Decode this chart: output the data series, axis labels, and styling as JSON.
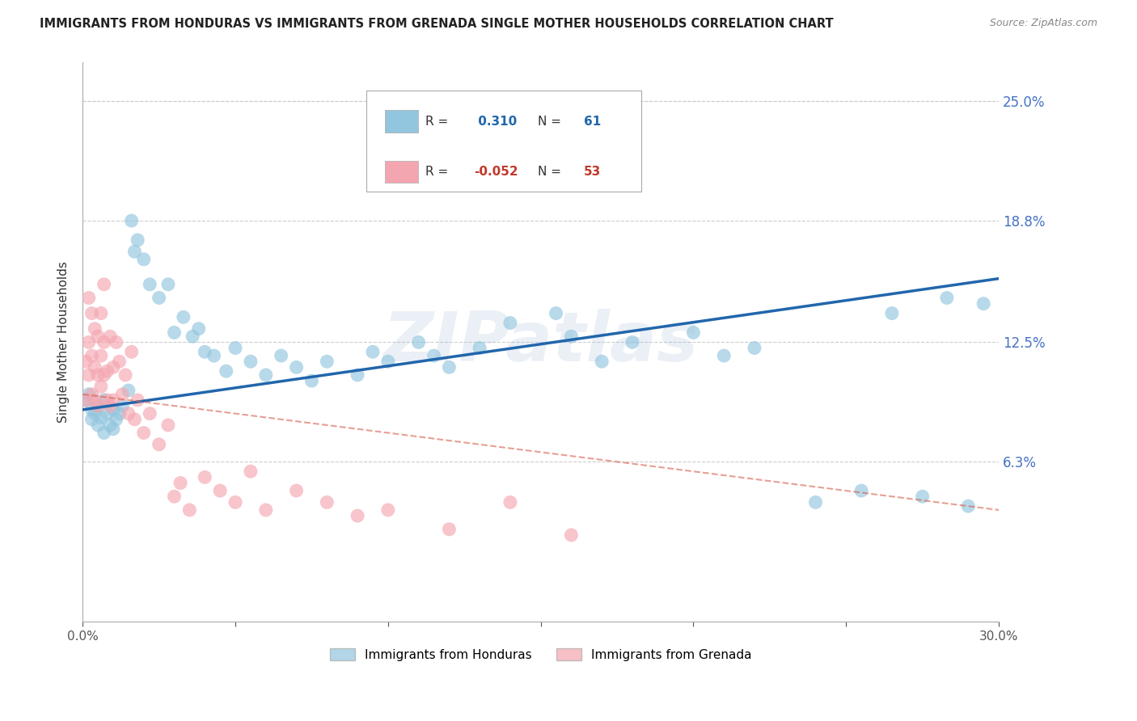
{
  "title": "IMMIGRANTS FROM HONDURAS VS IMMIGRANTS FROM GRENADA SINGLE MOTHER HOUSEHOLDS CORRELATION CHART",
  "source": "Source: ZipAtlas.com",
  "ylabel": "Single Mother Households",
  "xlim": [
    0.0,
    0.3
  ],
  "ylim": [
    -0.02,
    0.27
  ],
  "ytick_values": [
    0.063,
    0.125,
    0.188,
    0.25
  ],
  "ytick_labels": [
    "6.3%",
    "12.5%",
    "18.8%",
    "25.0%"
  ],
  "R_honduras": 0.31,
  "N_honduras": 61,
  "R_grenada": -0.052,
  "N_grenada": 53,
  "color_honduras": "#92c5de",
  "color_grenada": "#f4a6b0",
  "trend_color_honduras": "#2166ac",
  "trend_color_grenada": "#d6604d",
  "watermark": "ZIPatlas",
  "honduras_x": [
    0.001,
    0.002,
    0.003,
    0.003,
    0.004,
    0.005,
    0.005,
    0.006,
    0.007,
    0.007,
    0.008,
    0.009,
    0.01,
    0.01,
    0.011,
    0.012,
    0.013,
    0.015,
    0.016,
    0.017,
    0.018,
    0.02,
    0.022,
    0.025,
    0.028,
    0.03,
    0.033,
    0.036,
    0.038,
    0.04,
    0.043,
    0.047,
    0.05,
    0.055,
    0.06,
    0.065,
    0.07,
    0.075,
    0.08,
    0.09,
    0.095,
    0.1,
    0.11,
    0.115,
    0.12,
    0.13,
    0.14,
    0.155,
    0.16,
    0.17,
    0.18,
    0.2,
    0.21,
    0.22,
    0.24,
    0.255,
    0.265,
    0.275,
    0.283,
    0.29,
    0.295
  ],
  "honduras_y": [
    0.095,
    0.098,
    0.09,
    0.085,
    0.088,
    0.082,
    0.092,
    0.086,
    0.078,
    0.095,
    0.088,
    0.082,
    0.09,
    0.08,
    0.085,
    0.088,
    0.092,
    0.1,
    0.188,
    0.172,
    0.178,
    0.168,
    0.155,
    0.148,
    0.155,
    0.13,
    0.138,
    0.128,
    0.132,
    0.12,
    0.118,
    0.11,
    0.122,
    0.115,
    0.108,
    0.118,
    0.112,
    0.105,
    0.115,
    0.108,
    0.12,
    0.115,
    0.125,
    0.118,
    0.112,
    0.122,
    0.135,
    0.14,
    0.128,
    0.115,
    0.125,
    0.13,
    0.118,
    0.122,
    0.042,
    0.048,
    0.14,
    0.045,
    0.148,
    0.04,
    0.145
  ],
  "grenada_x": [
    0.001,
    0.001,
    0.002,
    0.002,
    0.002,
    0.003,
    0.003,
    0.003,
    0.004,
    0.004,
    0.004,
    0.005,
    0.005,
    0.005,
    0.006,
    0.006,
    0.006,
    0.007,
    0.007,
    0.007,
    0.008,
    0.008,
    0.009,
    0.009,
    0.01,
    0.01,
    0.011,
    0.012,
    0.013,
    0.014,
    0.015,
    0.016,
    0.017,
    0.018,
    0.02,
    0.022,
    0.025,
    0.028,
    0.03,
    0.032,
    0.035,
    0.04,
    0.045,
    0.05,
    0.055,
    0.06,
    0.07,
    0.08,
    0.09,
    0.1,
    0.12,
    0.14,
    0.16
  ],
  "grenada_y": [
    0.095,
    0.115,
    0.125,
    0.148,
    0.108,
    0.14,
    0.118,
    0.098,
    0.132,
    0.112,
    0.095,
    0.128,
    0.108,
    0.092,
    0.118,
    0.102,
    0.14,
    0.125,
    0.108,
    0.155,
    0.11,
    0.095,
    0.128,
    0.092,
    0.112,
    0.095,
    0.125,
    0.115,
    0.098,
    0.108,
    0.088,
    0.12,
    0.085,
    0.095,
    0.078,
    0.088,
    0.072,
    0.082,
    0.045,
    0.052,
    0.038,
    0.055,
    0.048,
    0.042,
    0.058,
    0.038,
    0.048,
    0.042,
    0.035,
    0.038,
    0.028,
    0.042,
    0.025
  ],
  "trend_h_x0": 0.0,
  "trend_h_y0": 0.09,
  "trend_h_x1": 0.3,
  "trend_h_y1": 0.158,
  "trend_g_x0": 0.0,
  "trend_g_y0": 0.098,
  "trend_g_x1": 0.3,
  "trend_g_y1": 0.038
}
